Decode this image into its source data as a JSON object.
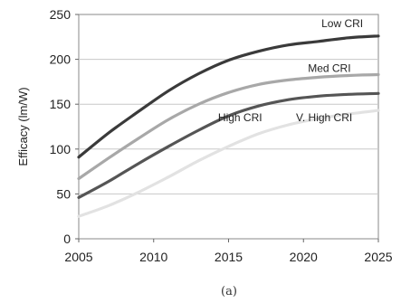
{
  "chart_data": {
    "type": "line",
    "title": "",
    "xlabel": "",
    "ylabel": "Efficacy (lm/W)",
    "caption": "(a)",
    "xlim": [
      2005,
      2025
    ],
    "ylim": [
      0,
      250
    ],
    "x_ticks": [
      "2005",
      "2010",
      "2015",
      "2020",
      "2025"
    ],
    "y_ticks": [
      "0",
      "50",
      "100",
      "150",
      "200",
      "250"
    ],
    "grid": "horizontal",
    "legend": "inline labels",
    "x": [
      2005,
      2007,
      2009,
      2011,
      2013,
      2015,
      2017,
      2019,
      2021,
      2023,
      2025
    ],
    "series": [
      {
        "name": "Low CRI",
        "color": "#3a3a3a",
        "values": [
          91,
          118,
          142,
          165,
          184,
          199,
          209,
          216,
          220,
          224,
          226
        ]
      },
      {
        "name": "Med CRI",
        "color": "#a8a8a8",
        "values": [
          67,
          90,
          112,
          133,
          150,
          163,
          172,
          177,
          180,
          182,
          183
        ]
      },
      {
        "name": "High CRI",
        "color": "#555555",
        "values": [
          46,
          64,
          84,
          103,
          121,
          137,
          148,
          155,
          159,
          161,
          162
        ]
      },
      {
        "name": "V. High CRI",
        "color": "#e2e2e2",
        "values": [
          25,
          37,
          52,
          69,
          87,
          103,
          117,
          127,
          134,
          139,
          143
        ]
      }
    ]
  }
}
